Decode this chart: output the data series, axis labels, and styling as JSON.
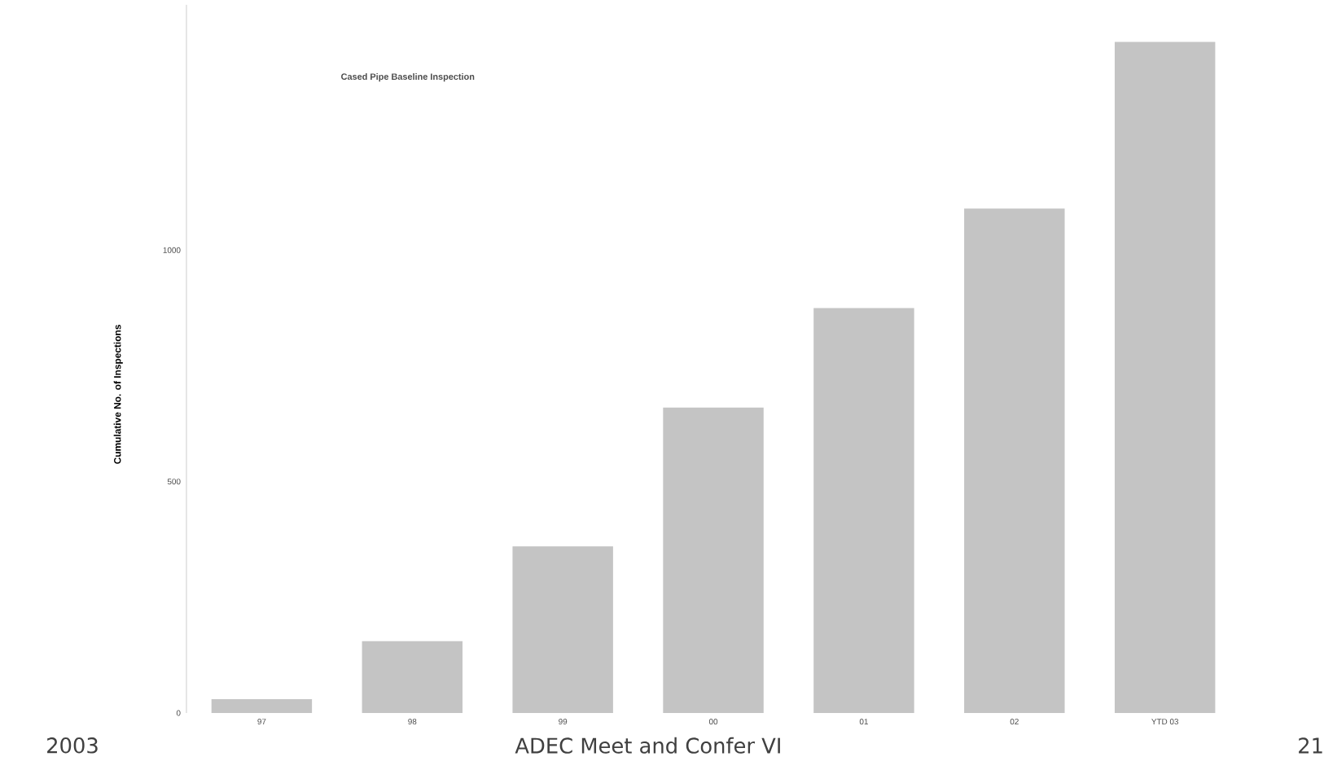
{
  "chart_data": {
    "type": "bar",
    "title": "Cased Pipe Baseline Inspection",
    "ylabel": "Cumulative No. of Inspections",
    "categories": [
      "97",
      "98",
      "99",
      "00",
      "01",
      "02",
      "YTD 03"
    ],
    "values": [
      30,
      155,
      360,
      660,
      875,
      1090,
      1450
    ],
    "color": "#c4c4c4",
    "ylim": [
      0,
      1530
    ],
    "yticks": [
      0,
      500,
      1000
    ],
    "grid": false,
    "annotations": [
      "2003",
      "ADEC Meet and Confer VI",
      "21"
    ]
  }
}
